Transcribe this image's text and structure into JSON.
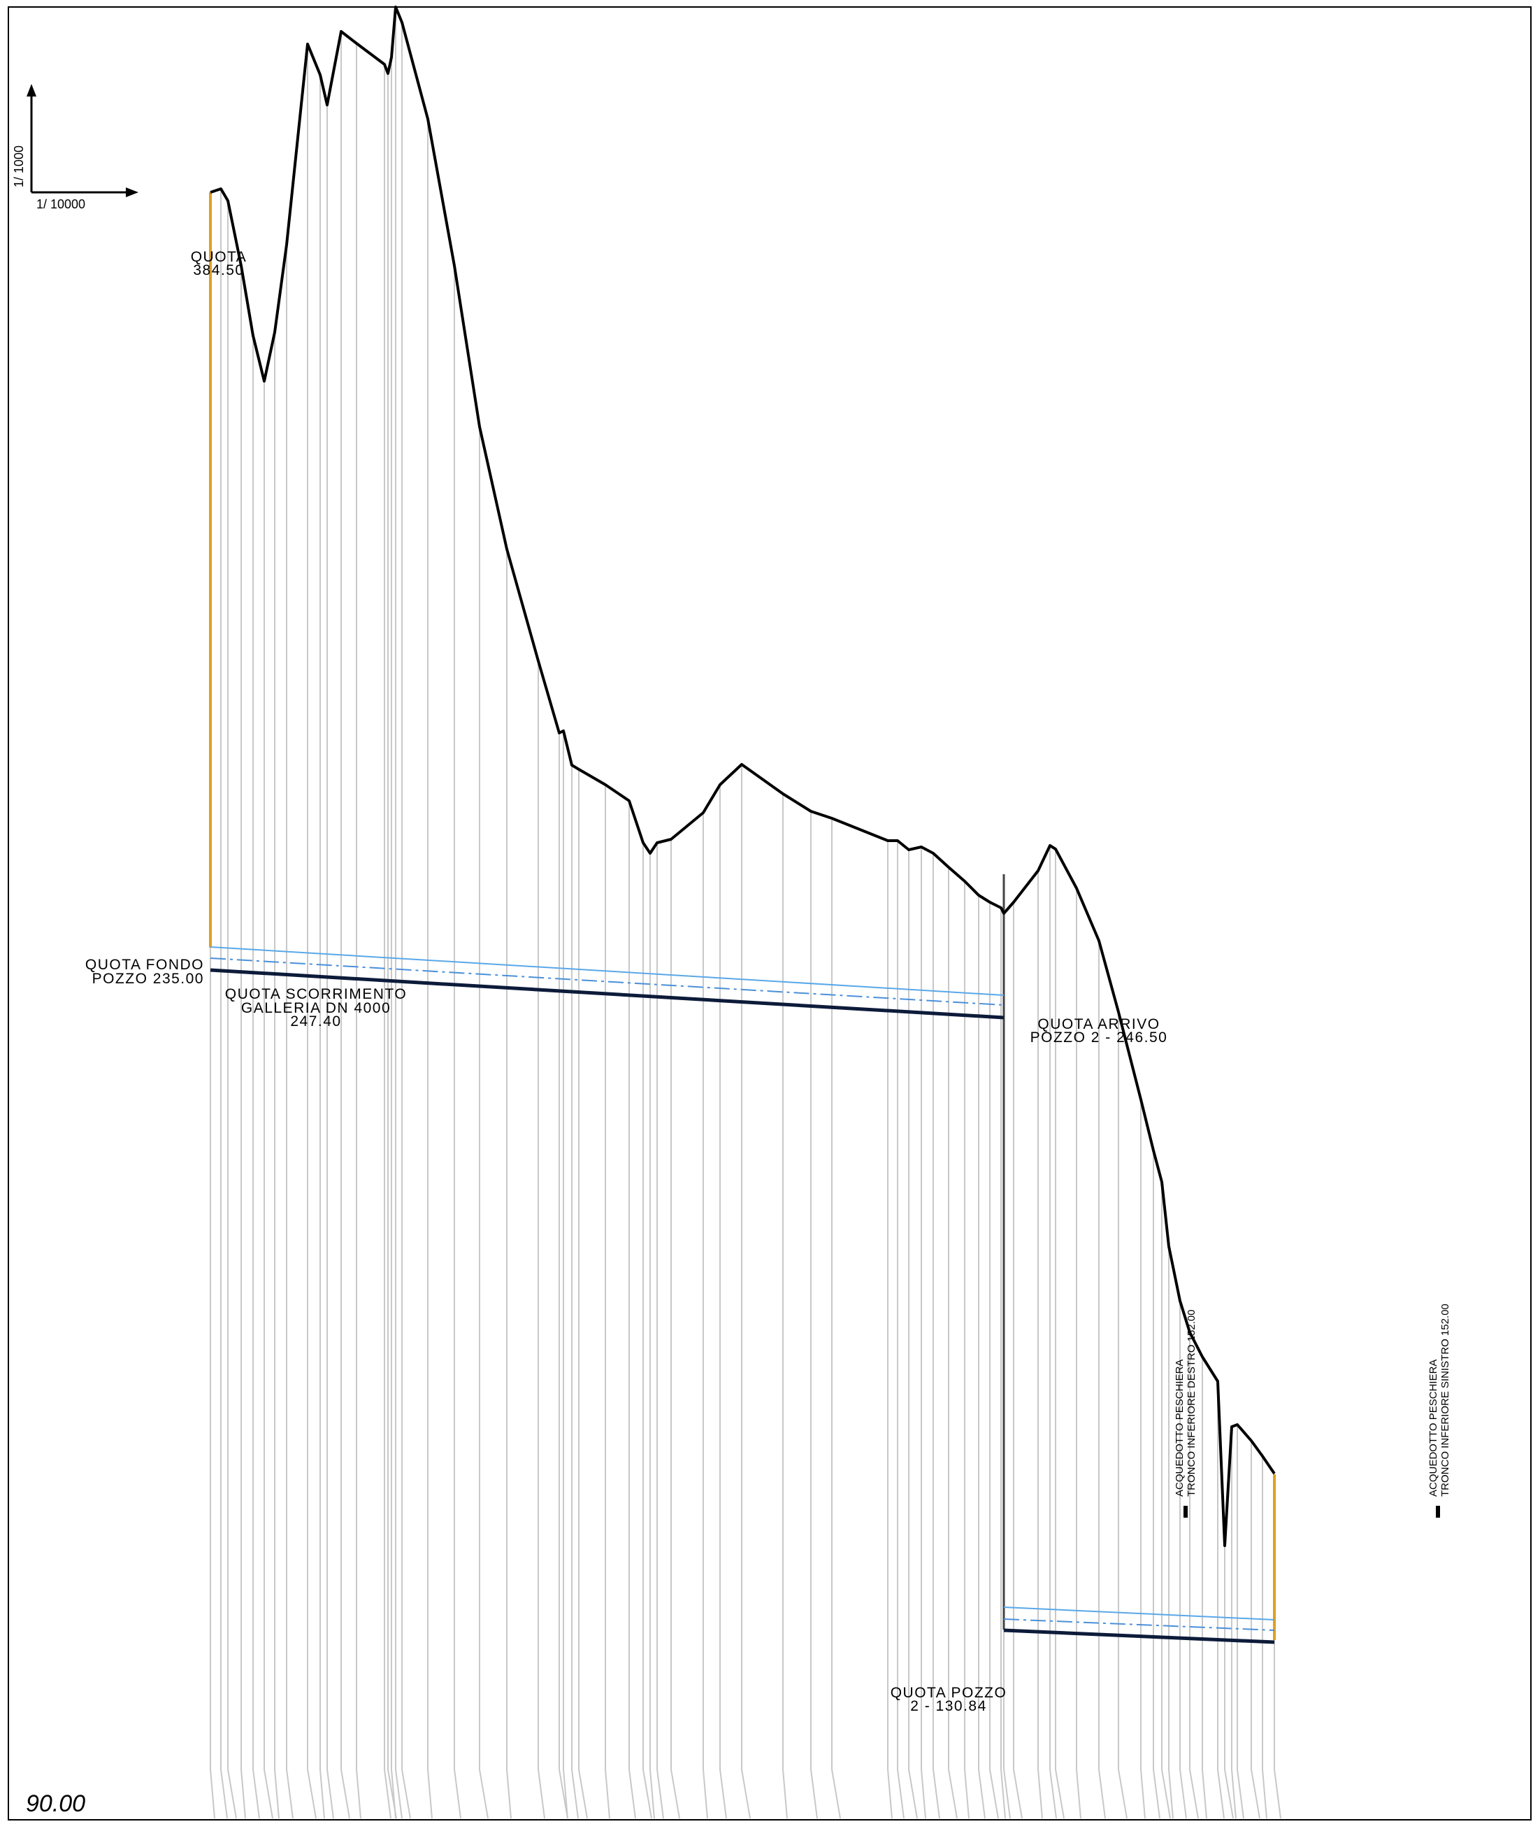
{
  "scale_indicator": {
    "vertical": "1/  1000",
    "horizontal": "1/   10000"
  },
  "labels": {
    "quota_top_line1": "QUOTA",
    "quota_top_line2": "384.50",
    "fondo_line1": "QUOTA FONDO",
    "fondo_line2": "POZZO 235.00",
    "scorrimento_line1": "QUOTA SCORRIMENTO",
    "scorrimento_line2": "GALLERIA DN 4000",
    "scorrimento_line3": "247.40",
    "arrivo_line1": "QUOTA ARRIVO",
    "arrivo_line2": "POZZO 2 - 246.50",
    "pozzo2_line1": "QUOTA POZZO",
    "pozzo2_line2": "2 - 130.84",
    "acq_destro_line1": "ACQUEDOTTO PESCHIERA",
    "acq_destro_line2": "TRONCO INFERIORE DESTRO 152.00",
    "acq_sinistro_line1": "ACQUEDOTTO PESCHIERA",
    "acq_sinistro_line2": "TRONCO INFERIORE SINISTRO 152.00",
    "datum": "90.00"
  },
  "colors": {
    "terrain": "#000000",
    "shaft": "#e0a020",
    "tunnel_outline": "#5aa8e8",
    "tunnel_axis": "#4a90d9",
    "tunnel_invert": "#0d1b3a",
    "stations": "#bdbdbd",
    "border": "#000000"
  }
}
